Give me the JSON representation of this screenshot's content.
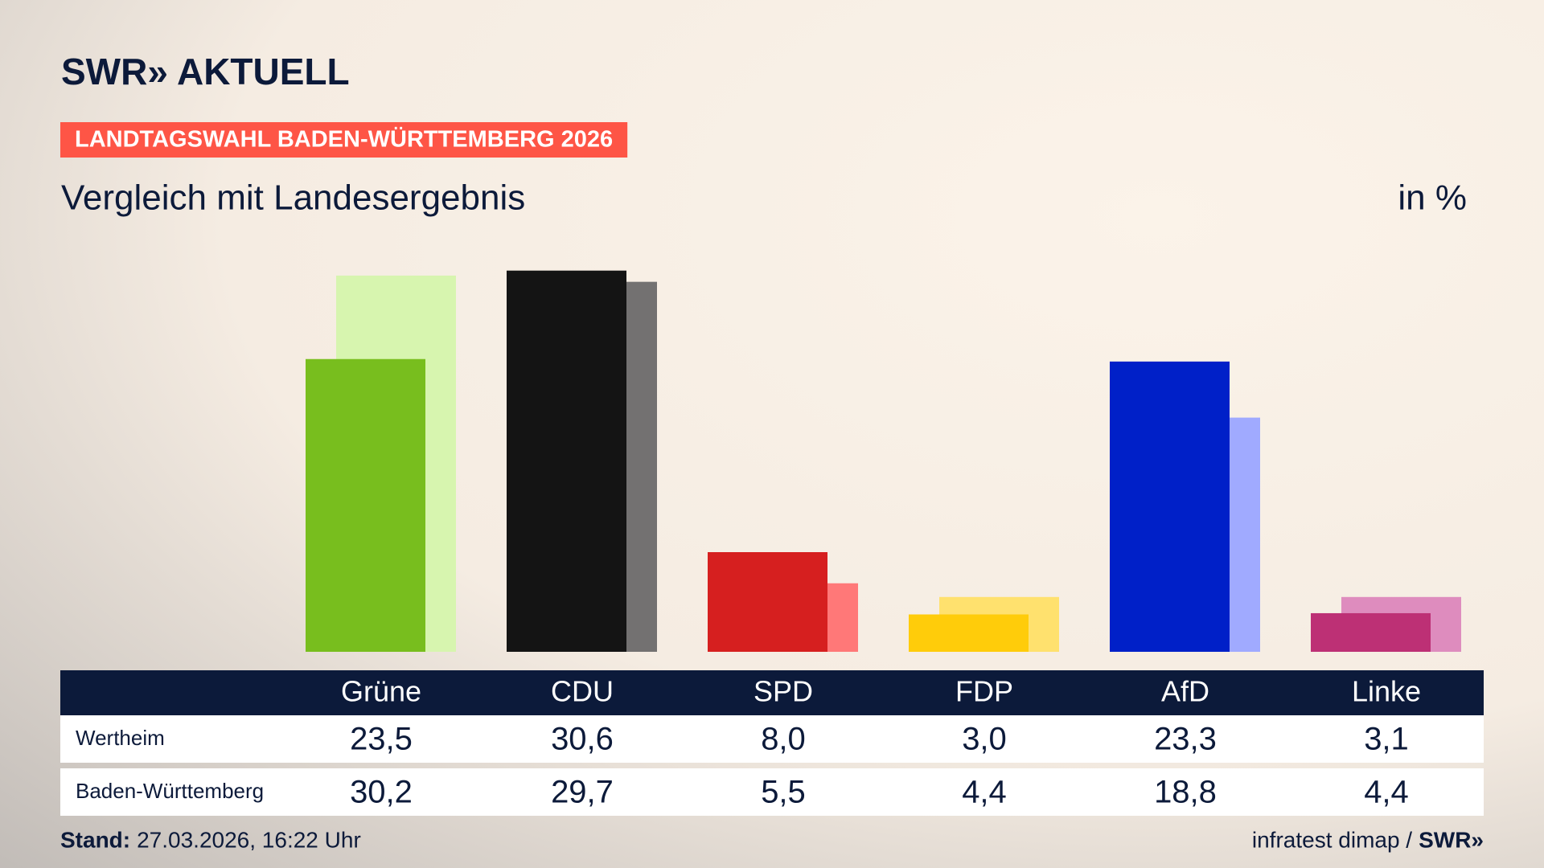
{
  "chart_data": {
    "type": "bar",
    "logo": "SWR» AKTUELL",
    "kicker": "LANDTAGSWAHL BADEN-WÜRTTEMBERG 2026",
    "title": "Vergleich mit Landesergebnis",
    "unit_label": "in %",
    "categories": [
      "Grüne",
      "CDU",
      "SPD",
      "FDP",
      "AfD",
      "Linke"
    ],
    "series": [
      {
        "name": "Wertheim",
        "colors": [
          "#78be1e",
          "#141414",
          "#d61f1f",
          "#ffcc0a",
          "#0020c8",
          "#bd3075"
        ],
        "values": [
          23.5,
          30.6,
          8.0,
          3.0,
          23.3,
          3.1
        ],
        "value_labels": [
          "23,5",
          "30,6",
          "8,0",
          "3,0",
          "23,3",
          "3,1"
        ]
      },
      {
        "name": "Baden-Württemberg",
        "colors": [
          "#d7f5af",
          "#737171",
          "#ff7878",
          "#ffe16e",
          "#a0aaff",
          "#de8cbe"
        ],
        "values": [
          30.2,
          29.7,
          5.5,
          4.4,
          18.8,
          4.4
        ],
        "value_labels": [
          "30,2",
          "29,7",
          "5,5",
          "4,4",
          "18,8",
          "4,4"
        ]
      }
    ],
    "footer_label": "Stand:",
    "footer_date": "27.03.2026, 16:22 Uhr",
    "source": "infratest dimap /",
    "source_logo": "SWR»"
  }
}
